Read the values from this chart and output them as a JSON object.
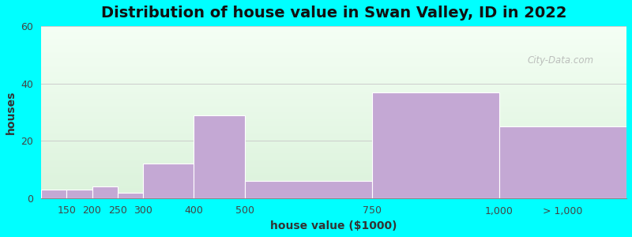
{
  "title": "Distribution of house value in Swan Valley, ID in 2022",
  "xlabel": "house value ($1000)",
  "ylabel": "houses",
  "bar_left_edges": [
    100,
    150,
    200,
    250,
    300,
    400,
    500,
    750,
    1000
  ],
  "bar_right_edges": [
    150,
    200,
    250,
    300,
    400,
    500,
    750,
    1000,
    1250
  ],
  "bar_heights": [
    3,
    3,
    4,
    2,
    12,
    29,
    6,
    37,
    25
  ],
  "xtick_positions": [
    150,
    200,
    250,
    300,
    400,
    500,
    750,
    1000,
    1125
  ],
  "xtick_labels": [
    "150",
    "200",
    "250",
    "300",
    "400",
    "500",
    "750",
    "1,000",
    "> 1,000"
  ],
  "bar_color": "#C4A8D4",
  "bar_edge_color": "#C4A8D4",
  "ylim": [
    0,
    60
  ],
  "yticks": [
    0,
    20,
    40,
    60
  ],
  "xlim": [
    100,
    1250
  ],
  "background_color": "#00FFFF",
  "grid_color": "#cccccc",
  "title_fontsize": 14,
  "axis_fontsize": 10,
  "tick_fontsize": 9,
  "watermark_text": "City-Data.com"
}
